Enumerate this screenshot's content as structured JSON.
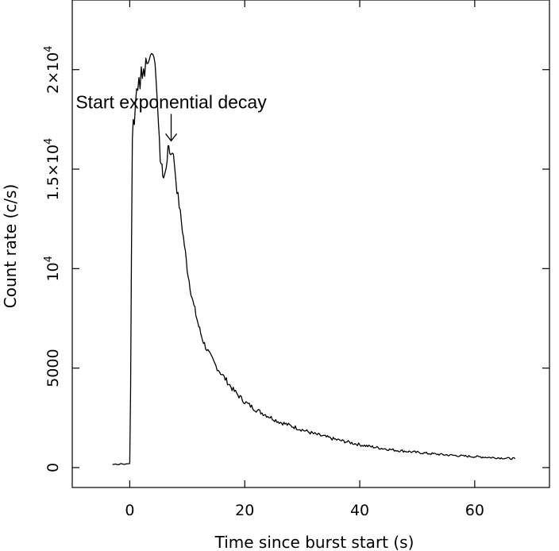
{
  "chart_data": {
    "type": "line",
    "title": "",
    "xlabel": "Time since burst start (s)",
    "ylabel": "Count rate (c/s)",
    "xlim": [
      -10,
      73
    ],
    "ylim": [
      -1000,
      23500
    ],
    "x_ticks": [
      {
        "value": 0,
        "label": "0"
      },
      {
        "value": 20,
        "label": "20"
      },
      {
        "value": 40,
        "label": "40"
      },
      {
        "value": 60,
        "label": "60"
      }
    ],
    "y_ticks": [
      {
        "value": 0,
        "label": "0",
        "sup": ""
      },
      {
        "value": 5000,
        "label": "5000",
        "sup": ""
      },
      {
        "value": 10000,
        "label": "10",
        "sup": "4"
      },
      {
        "value": 15000,
        "label": "1.5×10",
        "sup": "4"
      },
      {
        "value": 20000,
        "label": "2×10",
        "sup": "4"
      }
    ],
    "grid": false,
    "series": [
      {
        "color": "#000000",
        "points": [
          [
            -3,
            150
          ],
          [
            -2.5,
            180
          ],
          [
            -2,
            140
          ],
          [
            -1.5,
            200
          ],
          [
            -1,
            160
          ],
          [
            -0.5,
            190
          ],
          [
            0,
            200
          ],
          [
            0.15,
            4000
          ],
          [
            0.3,
            11000
          ],
          [
            0.45,
            16500
          ],
          [
            0.6,
            17500
          ],
          [
            0.8,
            17200
          ],
          [
            1.0,
            18600
          ],
          [
            1.2,
            19200
          ],
          [
            1.4,
            19000
          ],
          [
            1.6,
            19600
          ],
          [
            1.8,
            19300
          ],
          [
            2.0,
            19900
          ],
          [
            2.2,
            19500
          ],
          [
            2.4,
            20100
          ],
          [
            2.6,
            19800
          ],
          [
            2.8,
            20400
          ],
          [
            3.0,
            20200
          ],
          [
            3.2,
            20600
          ],
          [
            3.4,
            20500
          ],
          [
            3.6,
            20900
          ],
          [
            3.8,
            20700
          ],
          [
            4.0,
            21000
          ],
          [
            4.2,
            20600
          ],
          [
            4.4,
            20300
          ],
          [
            4.6,
            19600
          ],
          [
            4.8,
            18600
          ],
          [
            5.0,
            17000
          ],
          [
            5.3,
            15600
          ],
          [
            5.6,
            15000
          ],
          [
            5.9,
            14600
          ],
          [
            6.2,
            14800
          ],
          [
            6.5,
            15600
          ],
          [
            6.8,
            16200
          ],
          [
            7.1,
            15700
          ],
          [
            7.4,
            16000
          ],
          [
            7.8,
            15200
          ],
          [
            8.2,
            14000
          ],
          [
            8.6,
            13200
          ],
          [
            9.0,
            12300
          ],
          [
            9.5,
            11200
          ],
          [
            10.0,
            10000
          ],
          [
            10.5,
            9100
          ],
          [
            11.0,
            8300
          ],
          [
            11.5,
            7700
          ],
          [
            12.0,
            7100
          ],
          [
            12.5,
            6600
          ],
          [
            13.0,
            6200
          ],
          [
            14.0,
            5600
          ],
          [
            15.0,
            5100
          ],
          [
            16.0,
            4700
          ],
          [
            17.0,
            4300
          ],
          [
            18.0,
            3900
          ],
          [
            19.0,
            3600
          ],
          [
            20.0,
            3300
          ],
          [
            22.0,
            2900
          ],
          [
            24.0,
            2600
          ],
          [
            26.0,
            2300
          ],
          [
            28.0,
            2100
          ],
          [
            30.0,
            1900
          ],
          [
            32.0,
            1700
          ],
          [
            34.0,
            1550
          ],
          [
            36.0,
            1400
          ],
          [
            38.0,
            1280
          ],
          [
            40.0,
            1150
          ],
          [
            42.0,
            1050
          ],
          [
            44.0,
            960
          ],
          [
            46.0,
            880
          ],
          [
            48.0,
            820
          ],
          [
            50.0,
            760
          ],
          [
            52.0,
            710
          ],
          [
            54.0,
            660
          ],
          [
            56.0,
            620
          ],
          [
            58.0,
            580
          ],
          [
            60.0,
            550
          ],
          [
            62.0,
            520
          ],
          [
            64.0,
            490
          ],
          [
            66.0,
            460
          ],
          [
            67.0,
            450
          ]
        ]
      }
    ],
    "annotations": [
      {
        "text": "Start exponential decay",
        "x": 7.2,
        "y": 16300
      }
    ]
  }
}
